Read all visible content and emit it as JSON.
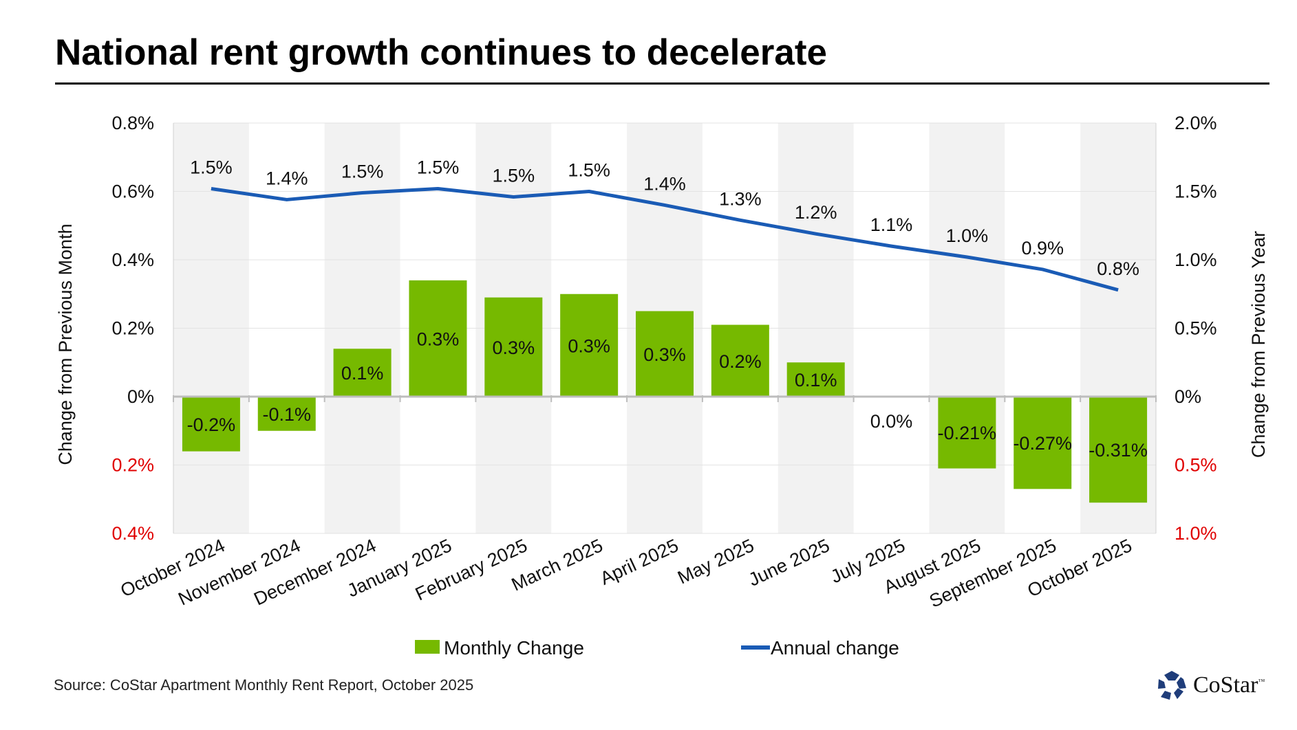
{
  "chart_data": {
    "type": "bar+line",
    "title": "National rent growth continues to decelerate",
    "categories": [
      "October 2024",
      "November 2024",
      "December 2024",
      "January 2025",
      "February 2025",
      "March 2025",
      "April 2025",
      "May 2025",
      "June 2025",
      "July 2025",
      "August 2025",
      "September 2025",
      "October 2025"
    ],
    "series": [
      {
        "name": "Monthly Change",
        "type": "bar",
        "axis": "left",
        "color": "#76b900",
        "values": [
          -0.16,
          -0.1,
          0.14,
          0.34,
          0.29,
          0.3,
          0.25,
          0.21,
          0.1,
          0.0,
          -0.21,
          -0.27,
          -0.31
        ],
        "labels": [
          "-0.2%",
          "-0.1%",
          "0.1%",
          "0.3%",
          "0.3%",
          "0.3%",
          "0.3%",
          "0.2%",
          "0.1%",
          "0.0%",
          "-0.21%",
          "-0.27%",
          "-0.31%"
        ]
      },
      {
        "name": "Annual change",
        "type": "line",
        "axis": "right",
        "color": "#1a5bb5",
        "values": [
          1.52,
          1.44,
          1.49,
          1.52,
          1.46,
          1.5,
          1.4,
          1.29,
          1.19,
          1.1,
          1.02,
          0.93,
          0.78
        ],
        "labels": [
          "1.5%",
          "1.4%",
          "1.5%",
          "1.5%",
          "1.5%",
          "1.5%",
          "1.4%",
          "1.3%",
          "1.2%",
          "1.1%",
          "1.0%",
          "0.9%",
          "0.8%"
        ]
      }
    ],
    "ylabel": "Change from Previous Month",
    "y2label": "Change from Previous Year",
    "ylim": [
      -0.4,
      0.8
    ],
    "y2lim": [
      -1.0,
      2.0
    ],
    "yticks": [
      {
        "v": 0.8,
        "label": "0.8%"
      },
      {
        "v": 0.6,
        "label": "0.6%"
      },
      {
        "v": 0.4,
        "label": "0.4%"
      },
      {
        "v": 0.2,
        "label": "0.2%"
      },
      {
        "v": 0,
        "label": "0%"
      },
      {
        "v": -0.2,
        "label": "0.2%",
        "color": "#e00000"
      },
      {
        "v": -0.4,
        "label": "0.4%",
        "color": "#e00000"
      }
    ],
    "y2ticks": [
      {
        "v": 2.0,
        "label": "2.0%"
      },
      {
        "v": 1.5,
        "label": "1.5%"
      },
      {
        "v": 1.0,
        "label": "1.0%"
      },
      {
        "v": 0.5,
        "label": "0.5%"
      },
      {
        "v": 0,
        "label": "0%"
      },
      {
        "v": -0.5,
        "label": "0.5%",
        "color": "#e00000"
      },
      {
        "v": -1.0,
        "label": "1.0%",
        "color": "#e00000"
      }
    ],
    "grid": true,
    "legend_position": "bottom"
  },
  "source": "Source: CoStar Apartment Monthly Rent Report, October 2025",
  "logo": {
    "text": "CoStar",
    "tm": "™"
  }
}
